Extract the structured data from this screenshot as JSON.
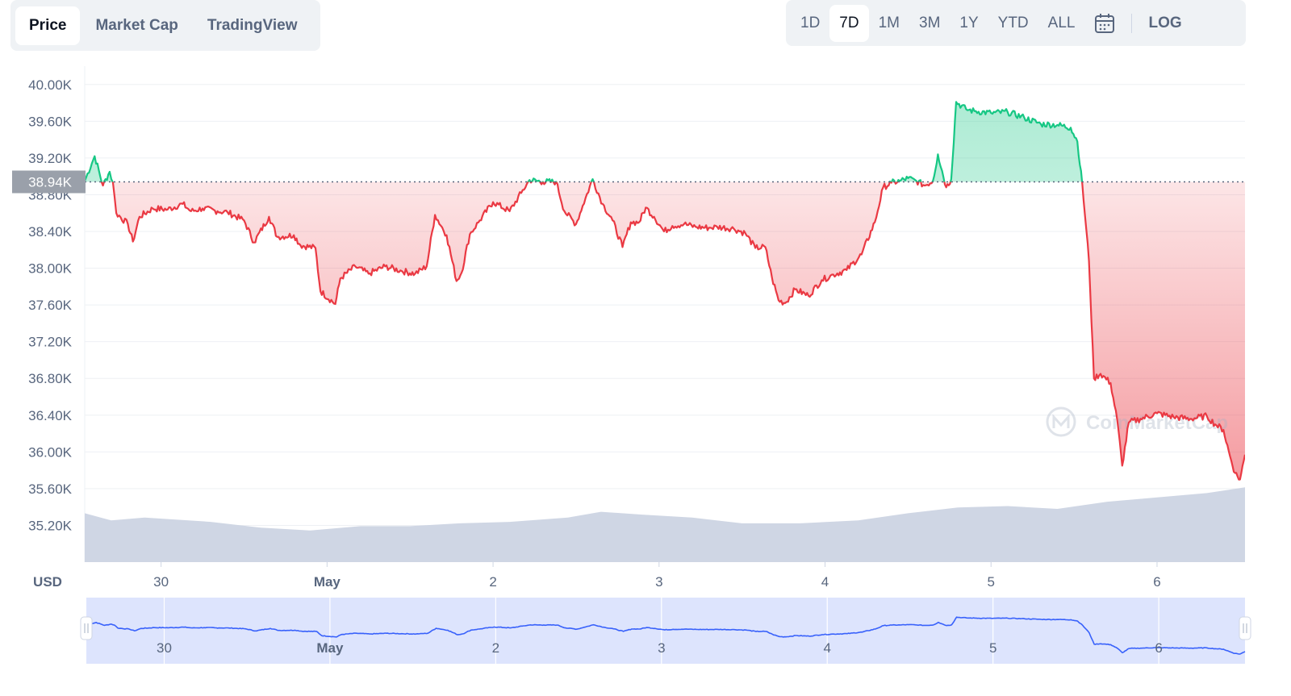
{
  "tabs": [
    {
      "label": "Price",
      "active": true
    },
    {
      "label": "Market Cap",
      "active": false
    },
    {
      "label": "TradingView",
      "active": false
    }
  ],
  "ranges": [
    {
      "label": "1D",
      "active": false
    },
    {
      "label": "7D",
      "active": true
    },
    {
      "label": "1M",
      "active": false
    },
    {
      "label": "3M",
      "active": false
    },
    {
      "label": "1Y",
      "active": false
    },
    {
      "label": "YTD",
      "active": false
    },
    {
      "label": "ALL",
      "active": false
    }
  ],
  "log_label": "LOG",
  "calendar_icon": "calendar-icon",
  "currency_label": "USD",
  "watermark": "CoinMarketCap",
  "colors": {
    "up": "#16c784",
    "down": "#ea3943",
    "volume": "#cfd6e4",
    "navigator_line": "#3861fb",
    "navigator_fill": "#dde4fd"
  },
  "chart_data": {
    "type": "line",
    "currency": "USD",
    "reference_price": 38940,
    "reference_label": "38.94K",
    "ylim": [
      34800,
      40200
    ],
    "y_ticks": [
      40000,
      39600,
      39200,
      38800,
      38400,
      38000,
      37600,
      37200,
      36800,
      36400,
      36000,
      35600,
      35200
    ],
    "y_tick_labels": [
      "40.00K",
      "39.60K",
      "39.20K",
      "38.80K",
      "38.40K",
      "38.00K",
      "37.60K",
      "37.20K",
      "36.80K",
      "36.40K",
      "36.00K",
      "35.60K",
      "35.20K"
    ],
    "xlim": [
      -0.46,
      6.53
    ],
    "x_ticks": [
      0,
      1,
      2,
      3,
      4,
      5,
      6
    ],
    "x_tick_labels": [
      "30",
      "May",
      "2",
      "3",
      "4",
      "5",
      "6"
    ],
    "x_tick_bold": [
      false,
      true,
      false,
      false,
      false,
      false,
      false
    ],
    "series": [
      {
        "values": [
          [
            -0.46,
            38950
          ],
          [
            -0.4,
            39220
          ],
          [
            -0.35,
            38900
          ],
          [
            -0.31,
            39050
          ],
          [
            -0.29,
            38930
          ],
          [
            -0.27,
            38600
          ],
          [
            -0.2,
            38480
          ],
          [
            -0.17,
            38290
          ],
          [
            -0.13,
            38560
          ],
          [
            -0.05,
            38650
          ],
          [
            0.04,
            38640
          ],
          [
            0.13,
            38700
          ],
          [
            0.18,
            38620
          ],
          [
            0.25,
            38650
          ],
          [
            0.34,
            38620
          ],
          [
            0.4,
            38610
          ],
          [
            0.5,
            38520
          ],
          [
            0.56,
            38280
          ],
          [
            0.65,
            38560
          ],
          [
            0.7,
            38340
          ],
          [
            0.8,
            38360
          ],
          [
            0.84,
            38250
          ],
          [
            0.93,
            38220
          ],
          [
            0.96,
            37750
          ],
          [
            1.05,
            37610
          ],
          [
            1.08,
            37890
          ],
          [
            1.17,
            38020
          ],
          [
            1.25,
            37940
          ],
          [
            1.35,
            38020
          ],
          [
            1.45,
            37970
          ],
          [
            1.53,
            37940
          ],
          [
            1.6,
            38020
          ],
          [
            1.65,
            38580
          ],
          [
            1.72,
            38360
          ],
          [
            1.78,
            37860
          ],
          [
            1.81,
            37950
          ],
          [
            1.86,
            38370
          ],
          [
            1.92,
            38520
          ],
          [
            2.0,
            38720
          ],
          [
            2.1,
            38620
          ],
          [
            2.17,
            38820
          ],
          [
            2.22,
            38960
          ],
          [
            2.3,
            38940
          ],
          [
            2.38,
            38940
          ],
          [
            2.43,
            38620
          ],
          [
            2.5,
            38480
          ],
          [
            2.54,
            38680
          ],
          [
            2.6,
            38970
          ],
          [
            2.66,
            38700
          ],
          [
            2.72,
            38520
          ],
          [
            2.78,
            38230
          ],
          [
            2.83,
            38500
          ],
          [
            2.88,
            38500
          ],
          [
            2.92,
            38660
          ],
          [
            2.97,
            38560
          ],
          [
            3.03,
            38400
          ],
          [
            3.08,
            38460
          ],
          [
            3.15,
            38480
          ],
          [
            3.22,
            38450
          ],
          [
            3.3,
            38440
          ],
          [
            3.35,
            38450
          ],
          [
            3.45,
            38430
          ],
          [
            3.52,
            38380
          ],
          [
            3.58,
            38220
          ],
          [
            3.64,
            38230
          ],
          [
            3.68,
            37900
          ],
          [
            3.72,
            37650
          ],
          [
            3.76,
            37620
          ],
          [
            3.82,
            37770
          ],
          [
            3.9,
            37700
          ],
          [
            3.98,
            37870
          ],
          [
            4.05,
            37930
          ],
          [
            4.13,
            37980
          ],
          [
            4.22,
            38150
          ],
          [
            4.3,
            38500
          ],
          [
            4.35,
            38880
          ],
          [
            4.4,
            38930
          ],
          [
            4.45,
            38950
          ],
          [
            4.5,
            38980
          ],
          [
            4.55,
            38950
          ],
          [
            4.6,
            38900
          ],
          [
            4.65,
            38950
          ],
          [
            4.68,
            39240
          ],
          [
            4.73,
            38880
          ],
          [
            4.76,
            38970
          ],
          [
            4.79,
            39810
          ],
          [
            4.85,
            39730
          ],
          [
            4.9,
            39710
          ],
          [
            5.0,
            39690
          ],
          [
            5.1,
            39700
          ],
          [
            5.2,
            39640
          ],
          [
            5.3,
            39570
          ],
          [
            5.4,
            39560
          ],
          [
            5.48,
            39530
          ],
          [
            5.52,
            39380
          ],
          [
            5.55,
            38910
          ],
          [
            5.59,
            38080
          ],
          [
            5.62,
            36800
          ],
          [
            5.66,
            36850
          ],
          [
            5.72,
            36750
          ],
          [
            5.76,
            36350
          ],
          [
            5.79,
            35850
          ],
          [
            5.83,
            36320
          ],
          [
            5.9,
            36360
          ],
          [
            6.0,
            36420
          ],
          [
            6.1,
            36380
          ],
          [
            6.2,
            36360
          ],
          [
            6.3,
            36390
          ],
          [
            6.35,
            36300
          ],
          [
            6.4,
            36240
          ],
          [
            6.44,
            35950
          ],
          [
            6.47,
            35770
          ],
          [
            6.5,
            35700
          ],
          [
            6.53,
            35970
          ]
        ]
      }
    ],
    "volume": [
      [
        -0.46,
        0.34
      ],
      [
        -0.3,
        0.29
      ],
      [
        -0.1,
        0.31
      ],
      [
        0.3,
        0.28
      ],
      [
        0.6,
        0.24
      ],
      [
        0.9,
        0.22
      ],
      [
        1.2,
        0.25
      ],
      [
        1.5,
        0.25
      ],
      [
        1.8,
        0.27
      ],
      [
        2.1,
        0.28
      ],
      [
        2.45,
        0.31
      ],
      [
        2.65,
        0.35
      ],
      [
        2.9,
        0.33
      ],
      [
        3.2,
        0.31
      ],
      [
        3.5,
        0.27
      ],
      [
        3.85,
        0.27
      ],
      [
        4.2,
        0.29
      ],
      [
        4.5,
        0.34
      ],
      [
        4.8,
        0.38
      ],
      [
        5.1,
        0.39
      ],
      [
        5.4,
        0.37
      ],
      [
        5.7,
        0.42
      ],
      [
        6.0,
        0.45
      ],
      [
        6.3,
        0.48
      ],
      [
        6.53,
        0.52
      ]
    ],
    "navigator": {
      "x_tick_labels": [
        "30",
        "May",
        "2",
        "3",
        "4",
        "5",
        "6"
      ],
      "x_tick_bold": [
        false,
        true,
        false,
        false,
        false,
        false,
        false
      ]
    }
  }
}
